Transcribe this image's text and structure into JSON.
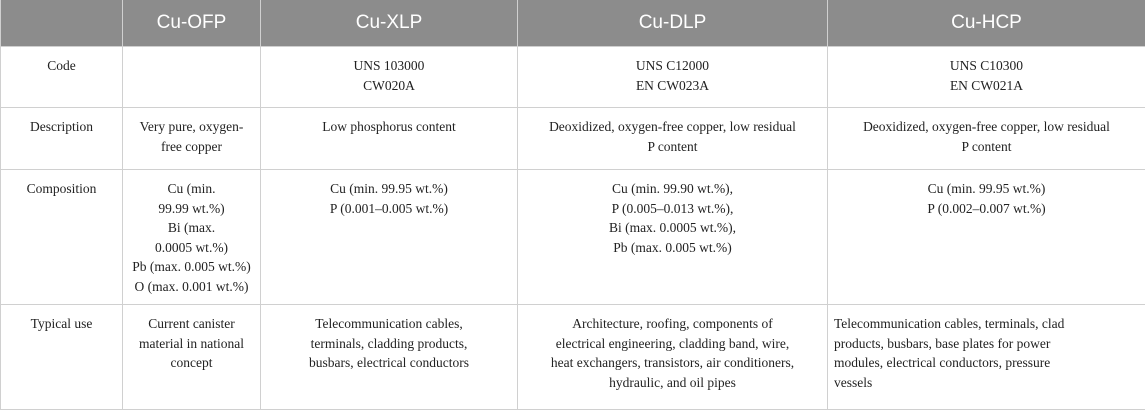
{
  "header": {
    "blank": "",
    "col1": "Cu-OFP",
    "col2": "Cu-XLP",
    "col3": "Cu-DLP",
    "col4": "Cu-HCP"
  },
  "rows": [
    {
      "label": "Code",
      "ofp": [],
      "xlp": [
        "UNS 103000",
        "CW020A"
      ],
      "dlp": [
        "UNS C12000",
        "EN CW023A"
      ],
      "hcp": [
        "UNS C10300",
        "EN CW021A"
      ]
    },
    {
      "label": "Description",
      "ofp": [
        "Very pure, oxygen-",
        "free copper"
      ],
      "xlp": [
        "Low phosphorus content"
      ],
      "dlp": [
        "Deoxidized, oxygen-free copper, low residual",
        "P content"
      ],
      "hcp": [
        "Deoxidized, oxygen-free copper, low residual",
        "P content"
      ]
    },
    {
      "label": "Composition",
      "ofp": [
        "Cu (min.",
        "99.99 wt.%)",
        "Bi (max.",
        "0.0005 wt.%)",
        "Pb (max. 0.005 wt.%)",
        "O (max. 0.001 wt.%)"
      ],
      "xlp": [
        "Cu (min. 99.95 wt.%)",
        "P (0.001–0.005 wt.%)"
      ],
      "dlp": [
        "Cu (min. 99.90 wt.%),",
        "P (0.005–0.013 wt.%),",
        "Bi (max. 0.0005 wt.%),",
        "Pb (max. 0.005 wt.%)"
      ],
      "hcp": [
        "Cu (min. 99.95 wt.%)",
        "P (0.002–0.007 wt.%)"
      ]
    },
    {
      "label": "Typical use",
      "ofp": [
        "Current canister",
        "material in national",
        "concept"
      ],
      "xlp": [
        "Telecommunication cables,",
        "terminals, cladding products,",
        "busbars, electrical conductors"
      ],
      "dlp": [
        "Architecture, roofing, components of",
        "electrical engineering, cladding band, wire,",
        "heat exchangers, transistors, air conditioners,",
        "hydraulic, and oil pipes"
      ],
      "hcp": [
        "Telecommunication cables, terminals, clad",
        "products, busbars, base plates for power",
        "modules, electrical conductors, pressure",
        "vessels"
      ]
    }
  ]
}
